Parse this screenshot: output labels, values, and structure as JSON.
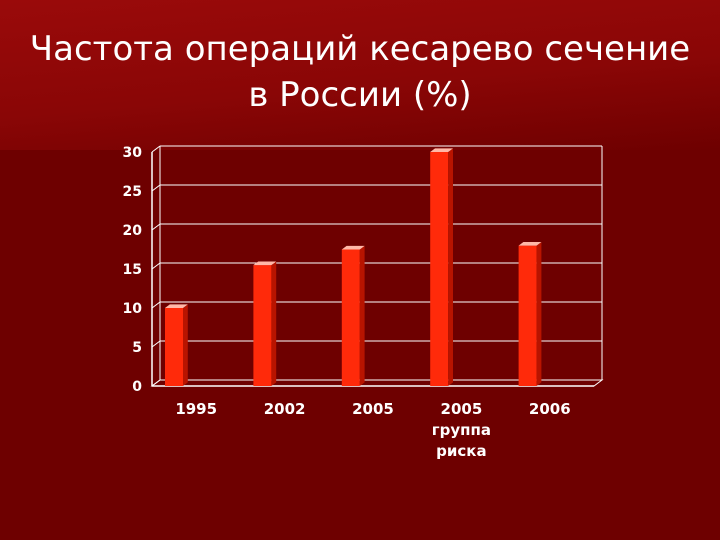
{
  "slide": {
    "title": "Частота операций кесарево сечение в России (%)"
  },
  "colors": {
    "background": "#6e0000",
    "bar_front": "#ff2a0a",
    "bar_side": "#b81400",
    "bar_top": "#ffb8a8",
    "axis_text": "#ffffff",
    "grid": "#ffffff"
  },
  "chart_data": {
    "type": "bar",
    "categories": [
      "1995",
      "2002",
      "2005",
      "2005\nгруппа\nриска",
      "2006"
    ],
    "values": [
      10,
      15.5,
      17.5,
      30,
      18
    ],
    "title": "Частота операций кесарево сечение в России (%)",
    "xlabel": "",
    "ylabel": "",
    "ylim": [
      0,
      30
    ],
    "yticks": [
      0,
      5,
      10,
      15,
      20,
      25,
      30
    ],
    "grid": true,
    "legend": "none",
    "style": "3d-column"
  }
}
